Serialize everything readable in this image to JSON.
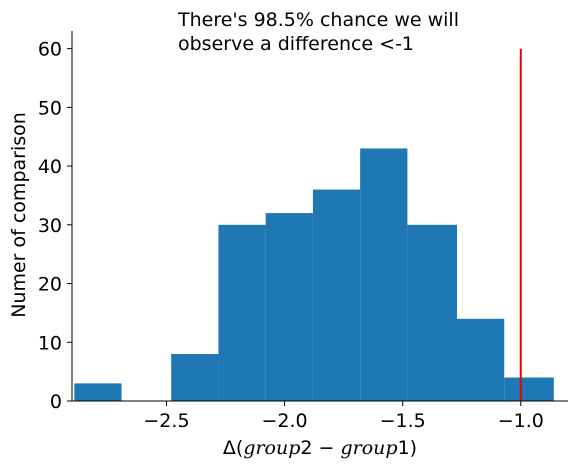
{
  "chart_data": {
    "type": "bar",
    "title": "",
    "annotation": [
      "There's 98.5% chance we will",
      "observe a difference <-1"
    ],
    "xlabel_parts": [
      "Δ(",
      "group",
      "2 − ",
      "group",
      "1)"
    ],
    "ylabel": "Numer of comparison",
    "xlim": [
      -2.9,
      -0.8
    ],
    "ylim": [
      0,
      63
    ],
    "x_ticks": [
      -2.5,
      -2.0,
      -1.5,
      -1.0
    ],
    "x_tick_labels": [
      "−2.5",
      "−2.0",
      "−1.5",
      "−1.0"
    ],
    "y_ticks": [
      0,
      10,
      20,
      30,
      40,
      50,
      60
    ],
    "y_tick_labels": [
      "0",
      "10",
      "20",
      "30",
      "40",
      "50",
      "60"
    ],
    "bins": [
      {
        "x0": -2.89,
        "x1": -2.69,
        "value": 3
      },
      {
        "x0": -2.69,
        "x1": -2.48,
        "value": 0
      },
      {
        "x0": -2.48,
        "x1": -2.28,
        "value": 8
      },
      {
        "x0": -2.28,
        "x1": -2.08,
        "value": 30
      },
      {
        "x0": -2.08,
        "x1": -1.88,
        "value": 32
      },
      {
        "x0": -1.88,
        "x1": -1.68,
        "value": 36
      },
      {
        "x0": -1.68,
        "x1": -1.48,
        "value": 43
      },
      {
        "x0": -1.48,
        "x1": -1.27,
        "value": 30
      },
      {
        "x0": -1.27,
        "x1": -1.07,
        "value": 14
      },
      {
        "x0": -1.07,
        "x1": -0.86,
        "value": 4
      }
    ],
    "threshold": {
      "x": -1.0,
      "y0": 0,
      "y1": 60
    },
    "bar_color": "#1f77b4",
    "threshold_color": "#e8000b",
    "grid": false,
    "spines": [
      "left",
      "bottom"
    ]
  }
}
